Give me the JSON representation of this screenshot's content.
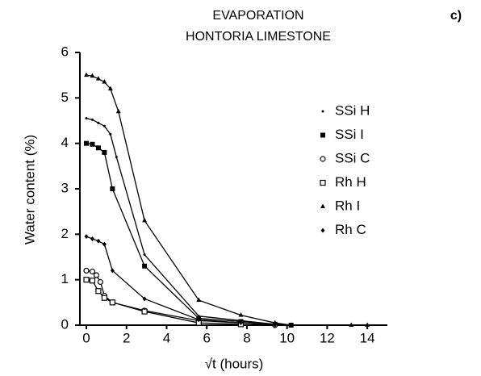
{
  "chart_data": {
    "type": "line",
    "title": "EVAPORATION",
    "subtitle": "HONTORIA LIMESTONE",
    "panel_label": "c)",
    "x_label": "√t (hours)",
    "y_label": "Water content (%)",
    "xlim": [
      0,
      15
    ],
    "xticks": [
      0,
      2,
      4,
      6,
      8,
      10,
      12,
      14
    ],
    "ylim": [
      0,
      6
    ],
    "yticks": [
      0,
      1,
      2,
      3,
      4,
      5,
      6
    ],
    "grid": false,
    "legend": "right",
    "series": [
      {
        "name": "SSi H",
        "color": "#000000",
        "marker": "dot",
        "x": [
          0,
          0.3,
          0.6,
          0.9,
          1.2,
          1.5,
          2.9,
          5.6,
          7.7,
          9.4,
          10.2,
          13.2,
          14
        ],
        "values": [
          4.55,
          4.52,
          4.45,
          4.38,
          4.2,
          3.7,
          1.55,
          0.2,
          0.1,
          0.02,
          0,
          0,
          0
        ]
      },
      {
        "name": "SSi I",
        "color": "#000000",
        "marker": "square-filled",
        "x": [
          0,
          0.3,
          0.6,
          0.9,
          1.3,
          2.9,
          5.6,
          7.7,
          9.4,
          10.2
        ],
        "values": [
          4.0,
          3.98,
          3.9,
          3.8,
          3.0,
          1.3,
          0.15,
          0.08,
          0.02,
          0
        ]
      },
      {
        "name": "SSi C",
        "color": "#000000",
        "marker": "circle-open",
        "x": [
          0,
          0.3,
          0.5,
          0.7,
          0.9,
          1.3,
          2.9,
          5.6,
          7.7,
          9.4
        ],
        "values": [
          1.2,
          1.18,
          1.1,
          0.95,
          0.65,
          0.5,
          0.32,
          0.1,
          0.05,
          0
        ]
      },
      {
        "name": "Rh H",
        "color": "#000000",
        "marker": "square-open",
        "x": [
          0,
          0.3,
          0.6,
          0.9,
          1.3,
          2.9,
          5.6,
          7.7
        ],
        "values": [
          1.0,
          0.98,
          0.75,
          0.6,
          0.5,
          0.3,
          0.05,
          0.02
        ]
      },
      {
        "name": "Rh I",
        "color": "#000000",
        "marker": "triangle",
        "x": [
          0,
          0.3,
          0.6,
          0.9,
          1.2,
          1.6,
          2.9,
          5.6,
          7.7,
          9.4,
          10.2,
          13.2,
          14
        ],
        "values": [
          5.5,
          5.48,
          5.42,
          5.35,
          5.2,
          4.7,
          2.3,
          0.55,
          0.22,
          0.05,
          0,
          0,
          0
        ]
      },
      {
        "name": "Rh C",
        "color": "#000000",
        "marker": "diamond",
        "x": [
          0,
          0.3,
          0.6,
          0.9,
          1.3,
          2.9,
          5.6,
          7.7,
          9.4
        ],
        "values": [
          1.95,
          1.9,
          1.85,
          1.78,
          1.2,
          0.58,
          0.12,
          0.05,
          0
        ]
      }
    ]
  }
}
